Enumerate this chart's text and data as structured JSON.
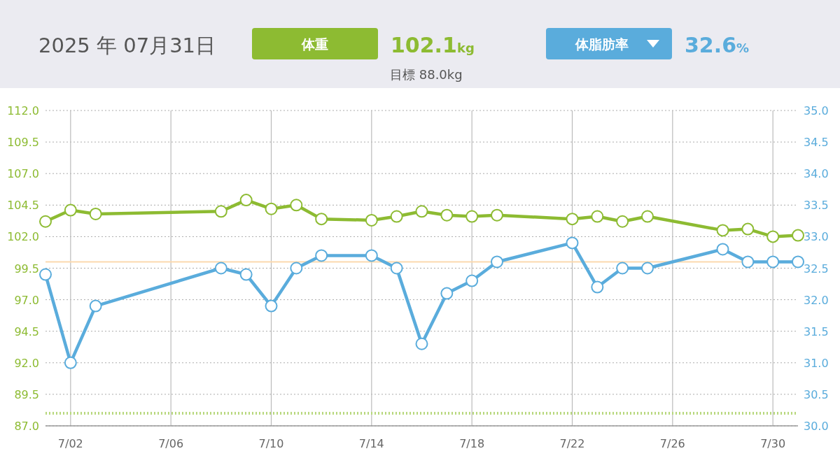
{
  "chart_data": {
    "type": "line",
    "title": "2025 年 07月31日",
    "x": [
      "--07-01",
      "--07-02",
      "--07-03",
      "--07-08",
      "--07-09",
      "--07-10",
      "--07-11",
      "--07-12",
      "--07-14",
      "--07-15",
      "--07-16",
      "--07-17",
      "--07-18",
      "--07-19",
      "--07-22",
      "--07-23",
      "--07-24",
      "--07-25",
      "--07-28",
      "--07-29",
      "--07-30",
      "--07-31"
    ],
    "series": [
      {
        "name": "体重",
        "color": "#8dbb32",
        "values": [
          103.2,
          104.1,
          103.8,
          104.0,
          104.9,
          104.2,
          104.5,
          103.4,
          103.3,
          103.6,
          104.0,
          103.7,
          103.6,
          103.7,
          103.4,
          103.6,
          103.2,
          103.6,
          102.5,
          102.6,
          102.0,
          102.1
        ]
      },
      {
        "name": "体脂肪率",
        "color": "#5aacdc",
        "axis": "y2",
        "values": [
          32.4,
          31.0,
          31.9,
          32.5,
          32.4,
          31.9,
          32.5,
          32.7,
          32.7,
          32.5,
          31.3,
          32.1,
          32.3,
          32.6,
          32.9,
          32.2,
          32.5,
          32.5,
          32.8,
          32.6,
          32.6,
          32.6
        ]
      }
    ],
    "xlim": [
      "--07-01",
      "--07-31"
    ],
    "xticks": [
      {
        "value": "--07-02",
        "label": "7/02"
      },
      {
        "value": "--07-06",
        "label": "7/06"
      },
      {
        "value": "--07-10",
        "label": "7/10"
      },
      {
        "value": "--07-14",
        "label": "7/14"
      },
      {
        "value": "--07-18",
        "label": "7/18"
      },
      {
        "value": "--07-22",
        "label": "7/22"
      },
      {
        "value": "--07-26",
        "label": "7/26"
      },
      {
        "value": "--07-30",
        "label": "7/30"
      }
    ],
    "ylim": [
      87,
      112
    ],
    "yticks": [
      {
        "value": 87,
        "label": "87.0"
      },
      {
        "value": 89.5,
        "label": "89.5"
      },
      {
        "value": 92,
        "label": "92.0"
      },
      {
        "value": 94.5,
        "label": "94.5"
      },
      {
        "value": 97,
        "label": "97.0"
      },
      {
        "value": 99.5,
        "label": "99.5"
      },
      {
        "value": 102,
        "label": "102.0"
      },
      {
        "value": 104.5,
        "label": "104.5"
      },
      {
        "value": 107,
        "label": "107.0"
      },
      {
        "value": 109.5,
        "label": "109.5"
      },
      {
        "value": 112,
        "label": "112.0"
      }
    ],
    "y2lim": [
      30,
      35
    ],
    "y2ticks": [
      {
        "value": 30,
        "label": "30.0"
      },
      {
        "value": 30.5,
        "label": "30.5"
      },
      {
        "value": 31,
        "label": "31.0"
      },
      {
        "value": 31.5,
        "label": "31.5"
      },
      {
        "value": 32,
        "label": "32.0"
      },
      {
        "value": 32.5,
        "label": "32.5"
      },
      {
        "value": 33,
        "label": "33.0"
      },
      {
        "value": 33.5,
        "label": "33.5"
      },
      {
        "value": 34,
        "label": "34.0"
      },
      {
        "value": 34.5,
        "label": "34.5"
      },
      {
        "value": 35,
        "label": "35.0"
      }
    ],
    "ref_lines": [
      {
        "axis": "y",
        "value": 88,
        "color": "#b8d87e",
        "line_style": "dotted"
      },
      {
        "axis": "y2",
        "value": 32.6,
        "color": "#fbd9ae",
        "line_style": "solid"
      }
    ],
    "annotations": [
      "102.1kg",
      "32.6%",
      "目標 88.0kg"
    ],
    "grid": true,
    "legend": "top",
    "marker": "circle",
    "line_style": "solid"
  }
}
